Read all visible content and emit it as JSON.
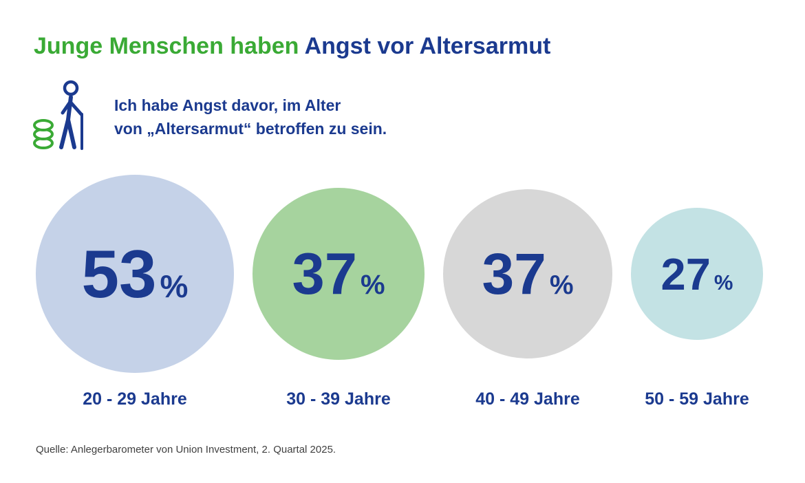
{
  "title": {
    "part1": "Junge Menschen haben",
    "part2": "Angst vor Altersarmut"
  },
  "statement": {
    "line1": "Ich habe Angst davor, im Alter",
    "line2": "von „Altersarmut“ betroffen zu sein."
  },
  "icon": {
    "name": "elderly-person-with-cane-and-coin-stack-icon"
  },
  "source": "Quelle: Anlegerbarometer von Union Investment, 2. Quartal 2025.",
  "colors": {
    "title_green": "#3aaa35",
    "brand_blue": "#1b3a8f",
    "bubble_blue": "#c5d2e8",
    "bubble_green": "#a6d39e",
    "bubble_gray": "#d7d7d7",
    "bubble_teal": "#c3e2e4"
  },
  "chart_data": {
    "type": "bubble",
    "title": "Junge Menschen haben Angst vor Altersarmut",
    "question": "Ich habe Angst davor, im Alter von „Altersarmut“ betroffen zu sein.",
    "categories": [
      "20 - 29 Jahre",
      "30 - 39 Jahre",
      "40 - 49 Jahre",
      "50 - 59 Jahre"
    ],
    "values": [
      53,
      37,
      37,
      27
    ],
    "unit": "%",
    "layout": "proportional circles, left to right by age group, circle area encodes value",
    "source": "Quelle: Anlegerbarometer von Union Investment, 2. Quartal 2025.",
    "items": [
      {
        "label": "20 - 29 Jahre",
        "value": "53",
        "unit": "%",
        "color": "#c5d2e8",
        "diameter": 288
      },
      {
        "label": "30 - 39 Jahre",
        "value": "37",
        "unit": "%",
        "color": "#a6d39e",
        "diameter": 250
      },
      {
        "label": "40 - 49 Jahre",
        "value": "37",
        "unit": "%",
        "color": "#d7d7d7",
        "diameter": 246
      },
      {
        "label": "50 - 59 Jahre",
        "value": "27",
        "unit": "%",
        "color": "#c3e2e4",
        "diameter": 192
      }
    ]
  }
}
